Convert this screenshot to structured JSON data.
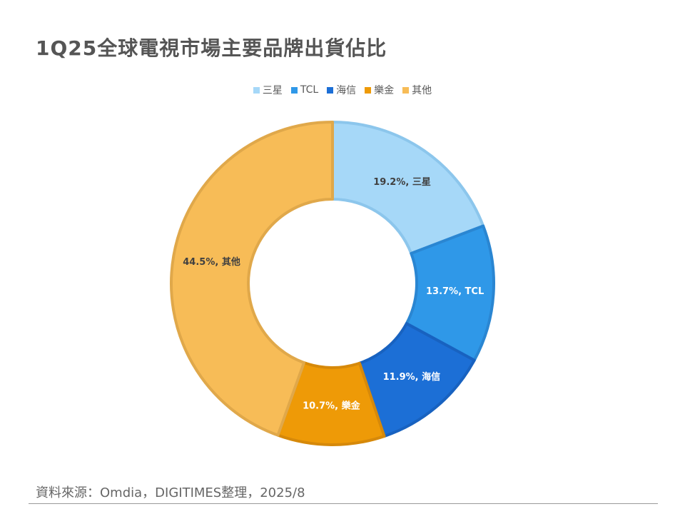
{
  "title": "1Q25全球電視市場主要品牌出貨佔比",
  "source": "資料來源：Omdia，DIGITIMES整理，2025/8",
  "chart_data": {
    "type": "pie",
    "variant": "donut",
    "title": "1Q25全球電視市場主要品牌出貨佔比",
    "legend_position": "top",
    "categories": [
      "三星",
      "TCL",
      "海信",
      "樂金",
      "其他"
    ],
    "values": [
      19.2,
      13.7,
      11.9,
      10.7,
      44.5
    ],
    "unit": "%",
    "colors": [
      "#a6d8f8",
      "#2f98e8",
      "#1c6fd6",
      "#ee9a07",
      "#f7bc57"
    ],
    "stroke_colors": [
      "#8cc6ec",
      "#2a86d2",
      "#1862c0",
      "#d6890a",
      "#e0a84a"
    ],
    "label_colors": [
      "#404040",
      "#ffffff",
      "#ffffff",
      "#ffffff",
      "#404040"
    ],
    "data_labels": [
      "19.2%, 三星",
      "13.7%, TCL",
      "11.9%, 海信",
      "10.7%, 樂金",
      "44.5%, 其他"
    ]
  }
}
